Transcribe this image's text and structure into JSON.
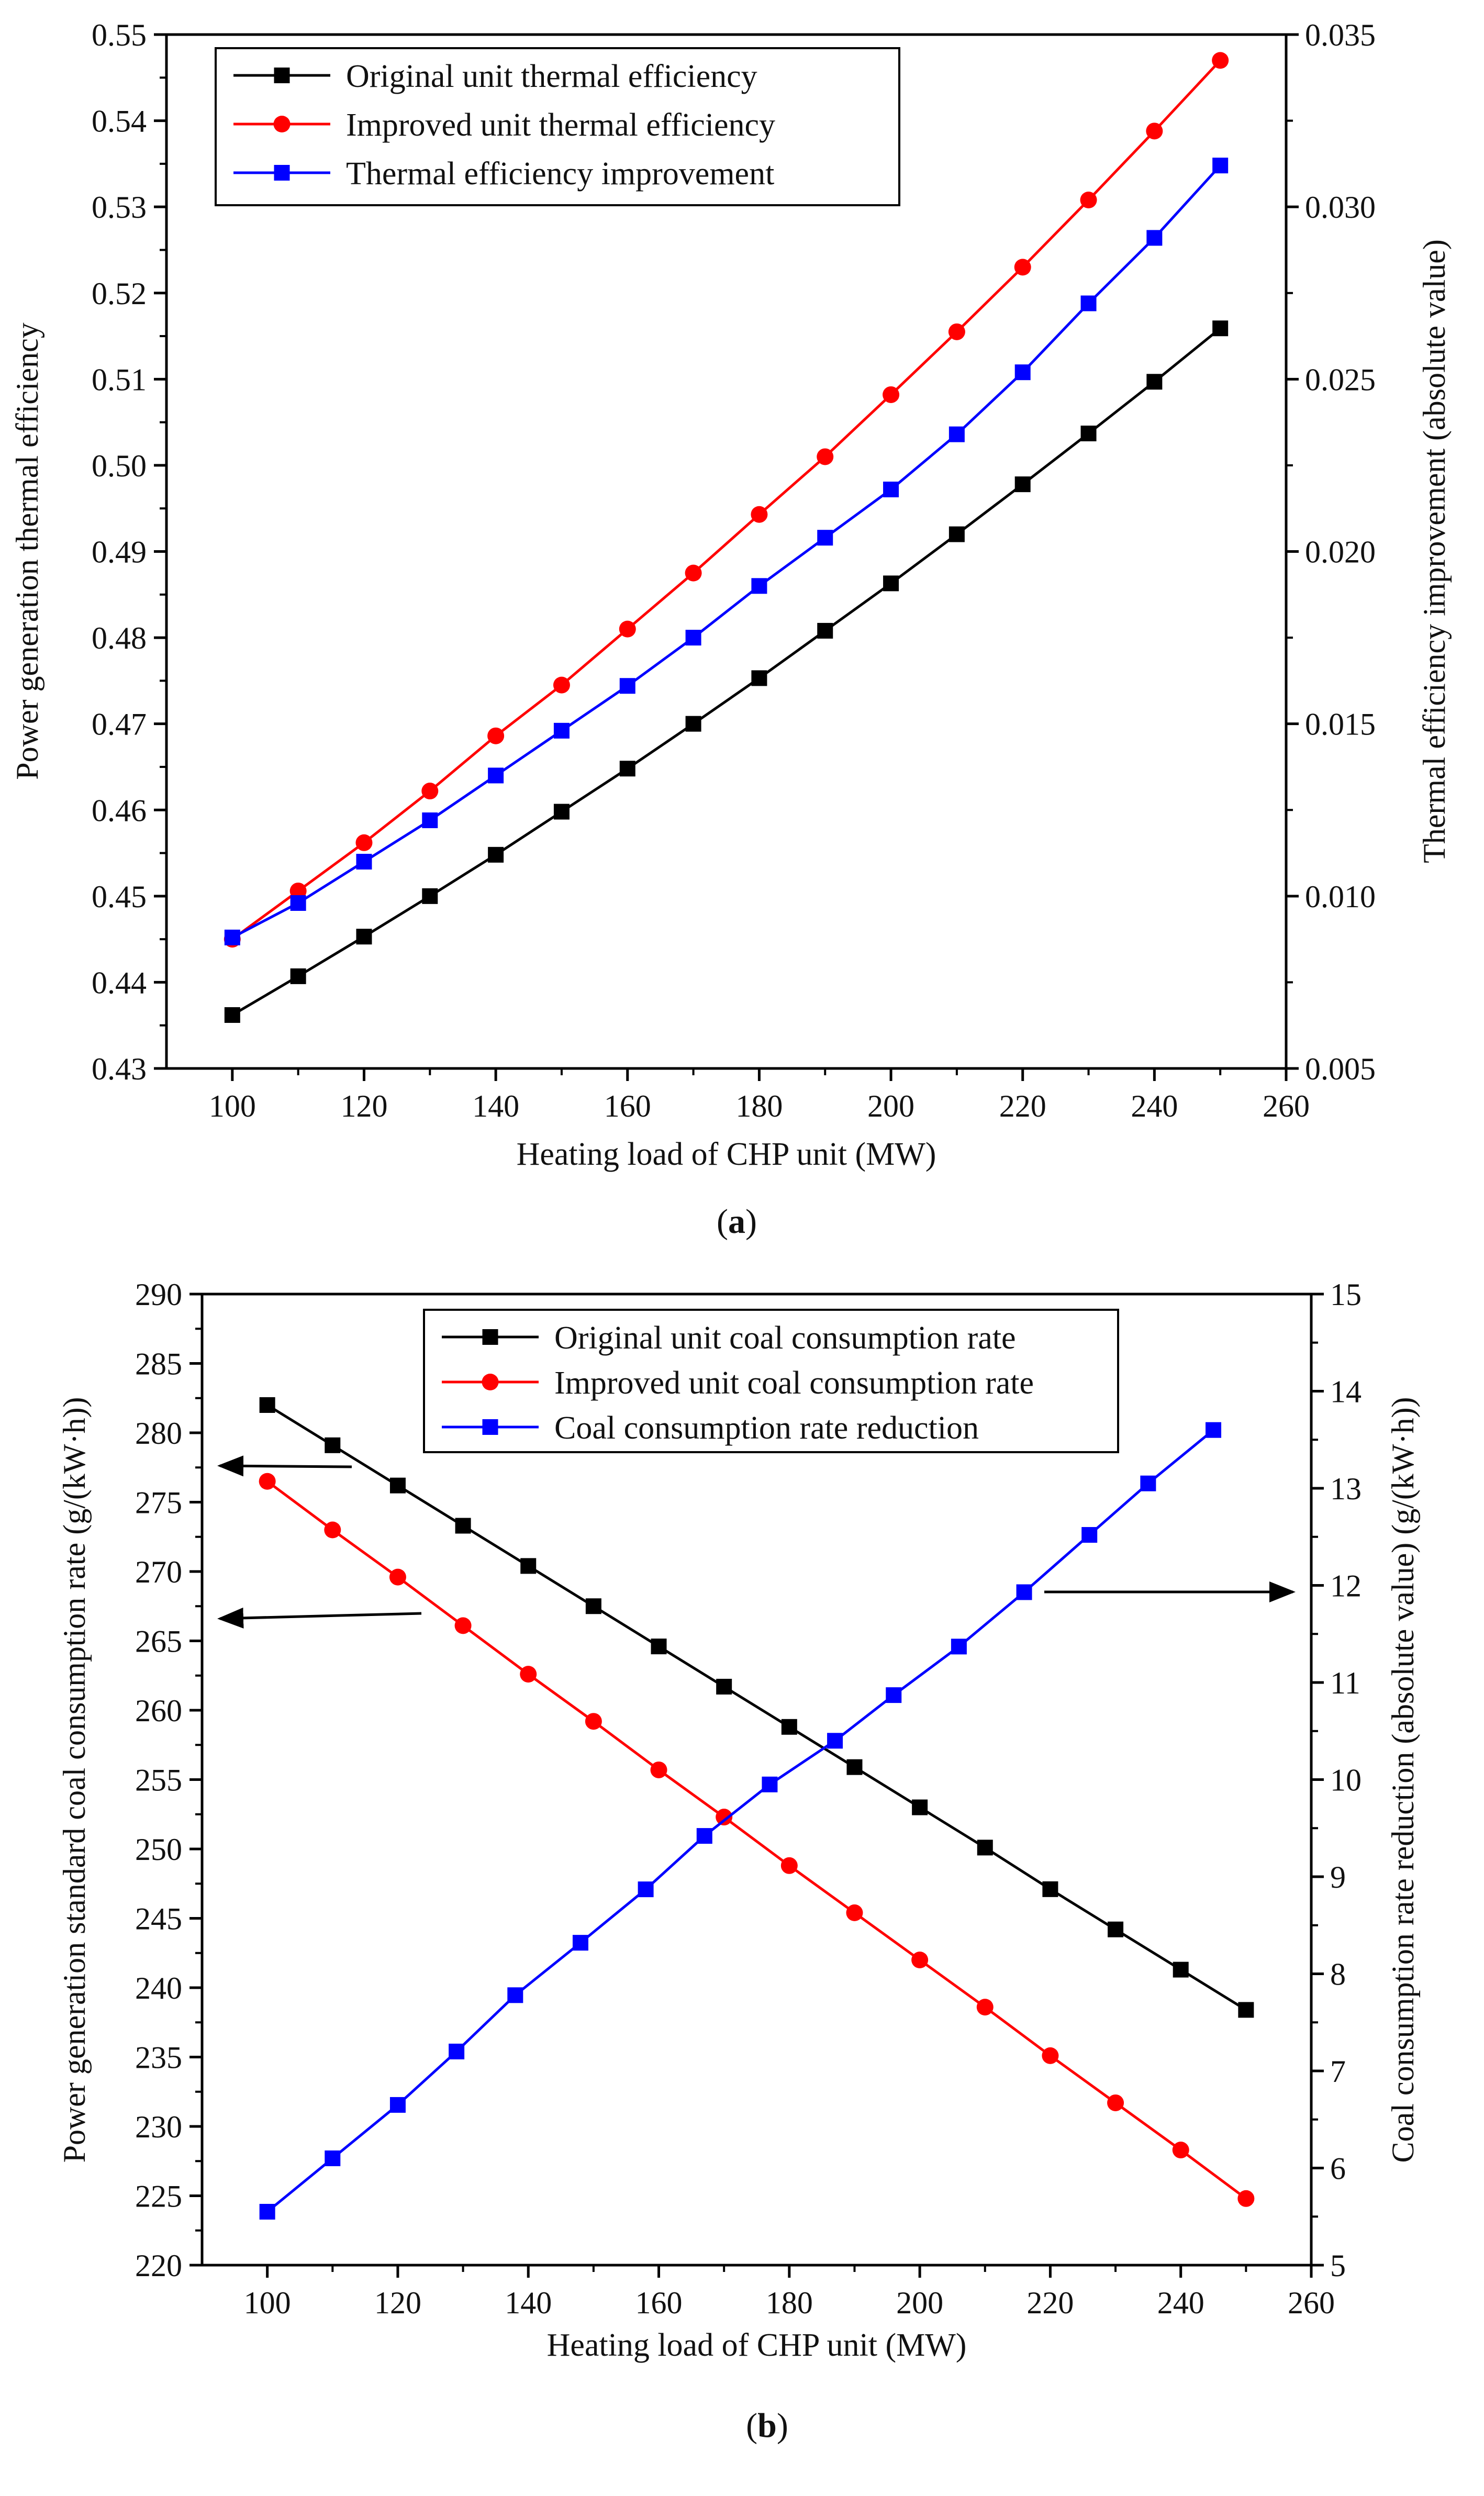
{
  "chart_data": [
    {
      "type": "line",
      "panel_label": "(a)",
      "panel_letter": "a",
      "xlabel": "Heating load of CHP unit (MW)",
      "ylabel_left": "Power generation thermal efficiency",
      "ylabel_right": "Thermal efficiency improvement (absolute value)",
      "xlim": [
        90,
        260
      ],
      "ylim_left": [
        0.43,
        0.55
      ],
      "ylim_right": [
        0.005,
        0.035
      ],
      "x_ticks": [
        100,
        120,
        140,
        160,
        180,
        200,
        220,
        240,
        260
      ],
      "y_left_ticks": [
        "0.43",
        "0.44",
        "0.45",
        "0.46",
        "0.47",
        "0.48",
        "0.49",
        "0.50",
        "0.51",
        "0.52",
        "0.53",
        "0.54",
        "0.55"
      ],
      "y_right_ticks": [
        "0.005",
        "0.010",
        "0.015",
        "0.020",
        "0.025",
        "0.030",
        "0.035"
      ],
      "legend_position": "top-left",
      "series": [
        {
          "name": "Original unit thermal efficiency",
          "axis": "left",
          "color": "#000000",
          "marker": "square",
          "x": [
            100,
            110,
            120,
            130,
            140,
            150,
            160,
            170,
            180,
            190,
            200,
            210,
            220,
            230,
            240,
            250
          ],
          "values": [
            0.4362,
            0.4407,
            0.4453,
            0.45,
            0.4548,
            0.4598,
            0.4648,
            0.47,
            0.4753,
            0.4808,
            0.4863,
            0.492,
            0.4978,
            0.5037,
            0.5097,
            0.5159
          ]
        },
        {
          "name": "Improved unit thermal efficiency",
          "axis": "left",
          "color": "#ff0000",
          "marker": "circle",
          "x": [
            100,
            110,
            120,
            130,
            140,
            150,
            160,
            170,
            180,
            190,
            200,
            210,
            220,
            230,
            240,
            250
          ],
          "values": [
            0.445,
            0.4506,
            0.4562,
            0.4622,
            0.4686,
            0.4745,
            0.481,
            0.4875,
            0.4943,
            0.501,
            0.5082,
            0.5155,
            0.523,
            0.5308,
            0.5388,
            0.547
          ]
        },
        {
          "name": "Thermal efficiency improvement",
          "axis": "right",
          "color": "#0000ff",
          "marker": "square",
          "x": [
            100,
            110,
            120,
            130,
            140,
            150,
            160,
            170,
            180,
            190,
            200,
            210,
            220,
            230,
            240,
            250
          ],
          "values": [
            0.0088,
            0.0098,
            0.011,
            0.0122,
            0.0135,
            0.0148,
            0.0161,
            0.0175,
            0.019,
            0.0204,
            0.0218,
            0.0234,
            0.0252,
            0.0272,
            0.0291,
            0.0312
          ]
        }
      ]
    },
    {
      "type": "line",
      "panel_label": "(b)",
      "panel_letter": "b",
      "xlabel": "Heating load of CHP unit (MW)",
      "ylabel_left": "Power generation standard coal consumption rate  (g/(kW·h))",
      "ylabel_right": "Coal consumption rate reduction (absolute value) (g/(kW·h))",
      "xlim": [
        90,
        260
      ],
      "ylim_left": [
        220,
        290
      ],
      "ylim_right": [
        5,
        15
      ],
      "x_ticks": [
        100,
        120,
        140,
        160,
        180,
        200,
        220,
        240,
        260
      ],
      "y_left_ticks": [
        "220",
        "225",
        "230",
        "235",
        "240",
        "245",
        "250",
        "255",
        "260",
        "265",
        "270",
        "275",
        "280",
        "285",
        "290"
      ],
      "y_right_ticks": [
        "5",
        "6",
        "7",
        "8",
        "9",
        "10",
        "11",
        "12",
        "13",
        "14",
        "15"
      ],
      "legend_position": "top-center",
      "series": [
        {
          "name": "Original unit coal consumption rate",
          "axis": "left",
          "color": "#000000",
          "marker": "square",
          "x": [
            100,
            110,
            120,
            130,
            140,
            150,
            160,
            170,
            180,
            190,
            200,
            210,
            220,
            230,
            240,
            250
          ],
          "values": [
            282.0,
            279.1,
            276.2,
            273.3,
            270.4,
            267.5,
            264.6,
            261.7,
            258.8,
            255.9,
            253.0,
            250.1,
            247.1,
            244.2,
            241.3,
            238.4
          ]
        },
        {
          "name": "Improved unit coal consumption rate",
          "axis": "left",
          "color": "#ff0000",
          "marker": "circle",
          "x": [
            100,
            110,
            120,
            130,
            140,
            150,
            160,
            170,
            180,
            190,
            200,
            210,
            220,
            230,
            240,
            250
          ],
          "values": [
            276.5,
            273.0,
            269.6,
            266.1,
            262.6,
            259.2,
            255.7,
            252.3,
            248.8,
            245.4,
            242.0,
            238.6,
            235.1,
            231.7,
            228.3,
            224.8
          ]
        },
        {
          "name": "Coal consumption rate reduction",
          "axis": "right",
          "color": "#0000ff",
          "marker": "square",
          "x": [
            100,
            110,
            120,
            129,
            138,
            148,
            158,
            167,
            177,
            187,
            196,
            206,
            216,
            226,
            235,
            245
          ],
          "values": [
            5.55,
            6.1,
            6.65,
            7.2,
            7.78,
            8.32,
            8.87,
            9.42,
            9.95,
            10.4,
            10.87,
            11.37,
            11.93,
            12.52,
            13.05,
            13.6
          ]
        }
      ]
    }
  ]
}
